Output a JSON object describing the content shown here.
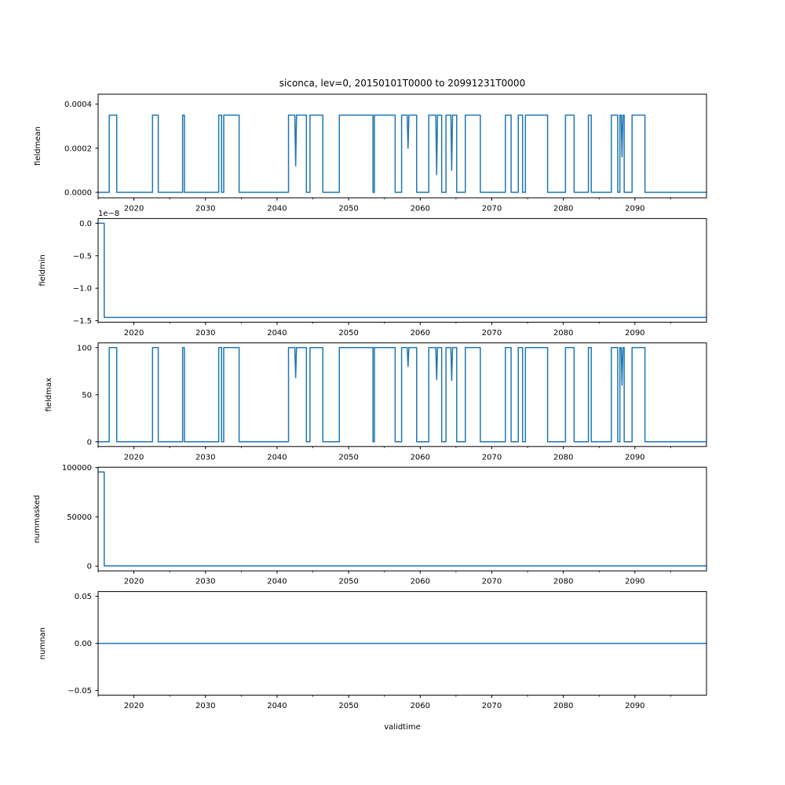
{
  "figure": {
    "title": "siconca, lev=0, 20150101T0000 to 20991231T0000",
    "xlabel": "validtime",
    "background": "#ffffff",
    "line_color": "#1f77b4",
    "spine_color": "#000000",
    "text_color": "#000000"
  },
  "axes": {
    "xlim": [
      2015,
      2100
    ],
    "x_major_ticks": [
      2020,
      2030,
      2040,
      2050,
      2060,
      2070,
      2080,
      2090
    ],
    "x_major_tick_labels": [
      "2020",
      "2030",
      "2040",
      "2050",
      "2060",
      "2070",
      "2080",
      "2090"
    ],
    "x_minor_ticks": [
      2015,
      2025,
      2035,
      2045,
      2055,
      2065,
      2075,
      2085,
      2095
    ]
  },
  "chart_data": [
    {
      "type": "line",
      "id": "fieldmean",
      "ylabel": "fieldmean",
      "ylim": [
        -2.5e-05,
        0.000445
      ],
      "yticks": [
        0.0,
        0.0002,
        0.0004
      ],
      "ytick_labels": [
        "0.0000",
        "0.0002",
        "0.0004"
      ],
      "offset_text": "",
      "signal": {
        "kind": "pulses",
        "low": 0.0,
        "high": 0.00035,
        "pulses": [
          [
            2016.55,
            2017.6
          ],
          [
            2022.6,
            2023.4
          ],
          [
            2026.8,
            2027.05
          ],
          [
            2031.85,
            2032.25
          ],
          [
            2032.55,
            2034.7
          ],
          [
            2041.6,
            2044.1
          ],
          [
            2044.6,
            2046.4
          ],
          [
            2048.7,
            2053.4
          ],
          [
            2053.6,
            2056.5
          ],
          [
            2057.4,
            2059.5
          ],
          [
            2061.2,
            2063.0
          ],
          [
            2063.6,
            2065.1
          ],
          [
            2066.3,
            2068.4
          ],
          [
            2071.9,
            2072.7
          ],
          [
            2073.7,
            2074.3
          ],
          [
            2074.7,
            2077.8
          ],
          [
            2080.3,
            2081.5
          ],
          [
            2083.5,
            2083.9
          ],
          [
            2086.7,
            2087.6
          ],
          [
            2087.9,
            2088.5
          ],
          [
            2089.6,
            2091.4
          ]
        ],
        "dips": [
          [
            2042.6,
            0.00012
          ],
          [
            2058.3,
            0.0002
          ],
          [
            2062.3,
            8e-05
          ],
          [
            2064.4,
            0.0001
          ],
          [
            2088.2,
            0.00016
          ]
        ]
      }
    },
    {
      "type": "line",
      "id": "fieldmin",
      "ylabel": "fieldmin",
      "ylim": [
        -1.5225,
        0.0725
      ],
      "yticks": [
        0.0,
        -0.5,
        -1.0,
        -1.5
      ],
      "ytick_labels": [
        "0.0",
        "−0.5",
        "−1.0",
        "−1.5"
      ],
      "offset_text": "1e−8",
      "signal": {
        "kind": "steps",
        "points": [
          [
            2015,
            0.0
          ],
          [
            2015.85,
            0.0
          ],
          [
            2015.85,
            -1.45
          ],
          [
            2100,
            -1.45
          ]
        ]
      }
    },
    {
      "type": "line",
      "id": "fieldmax",
      "ylabel": "fieldmax",
      "ylim": [
        -5,
        105
      ],
      "yticks": [
        0,
        50,
        100
      ],
      "ytick_labels": [
        "0",
        "50",
        "100"
      ],
      "offset_text": "",
      "signal": {
        "kind": "pulses",
        "low": 0,
        "high": 100,
        "pulses": [
          [
            2016.55,
            2017.6
          ],
          [
            2022.6,
            2023.4
          ],
          [
            2026.8,
            2027.05
          ],
          [
            2031.85,
            2032.25
          ],
          [
            2032.55,
            2034.7
          ],
          [
            2041.6,
            2044.1
          ],
          [
            2044.6,
            2046.4
          ],
          [
            2048.7,
            2053.4
          ],
          [
            2053.6,
            2056.5
          ],
          [
            2057.4,
            2059.5
          ],
          [
            2061.2,
            2063.0
          ],
          [
            2063.6,
            2065.1
          ],
          [
            2066.3,
            2068.4
          ],
          [
            2071.9,
            2072.7
          ],
          [
            2073.7,
            2074.3
          ],
          [
            2074.7,
            2077.8
          ],
          [
            2080.3,
            2081.5
          ],
          [
            2083.5,
            2083.9
          ],
          [
            2086.7,
            2087.6
          ],
          [
            2087.9,
            2088.5
          ],
          [
            2089.6,
            2091.4
          ]
        ],
        "dips": [
          [
            2042.6,
            68
          ],
          [
            2058.3,
            80
          ],
          [
            2062.3,
            66
          ],
          [
            2064.4,
            65
          ],
          [
            2088.2,
            60
          ]
        ]
      }
    },
    {
      "type": "line",
      "id": "nummasked",
      "ylabel": "nummasked",
      "ylim": [
        -4780,
        100380
      ],
      "yticks": [
        0,
        50000,
        100000
      ],
      "ytick_labels": [
        "0",
        "50000",
        "100000"
      ],
      "offset_text": "",
      "signal": {
        "kind": "steps",
        "points": [
          [
            2015,
            95600
          ],
          [
            2015.85,
            95600
          ],
          [
            2015.85,
            300
          ],
          [
            2100,
            300
          ]
        ]
      }
    },
    {
      "type": "line",
      "id": "numnan",
      "ylabel": "numnan",
      "ylim": [
        -0.055,
        0.055
      ],
      "yticks": [
        -0.05,
        0.0,
        0.05
      ],
      "ytick_labels": [
        "−0.05",
        "0.00",
        "0.05"
      ],
      "offset_text": "",
      "signal": {
        "kind": "steps",
        "points": [
          [
            2015,
            0.0
          ],
          [
            2100,
            0.0
          ]
        ]
      }
    }
  ]
}
